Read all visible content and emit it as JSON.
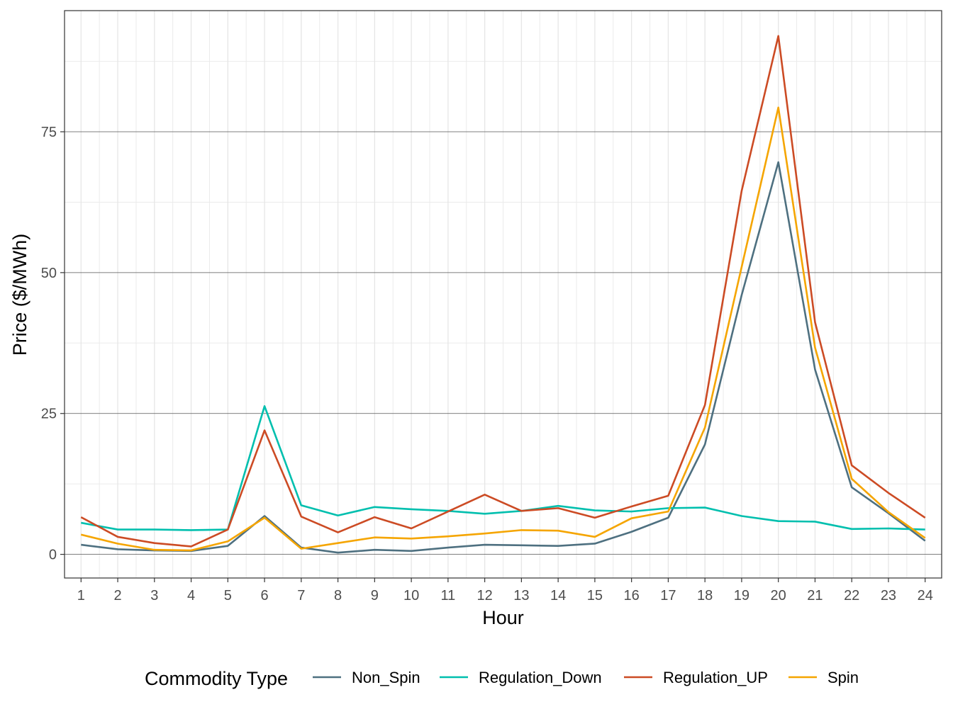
{
  "chart_data": {
    "type": "line",
    "title": "",
    "xlabel": "Hour",
    "ylabel": "Price ($/MWh)",
    "x": [
      1,
      2,
      3,
      4,
      5,
      6,
      7,
      8,
      9,
      10,
      11,
      12,
      13,
      14,
      15,
      16,
      17,
      18,
      19,
      20,
      21,
      22,
      23,
      24
    ],
    "x_tick_labels": [
      "1",
      "2",
      "3",
      "4",
      "5",
      "6",
      "7",
      "8",
      "9",
      "10",
      "11",
      "12",
      "13",
      "14",
      "15",
      "16",
      "17",
      "18",
      "19",
      "20",
      "21",
      "22",
      "23",
      "24"
    ],
    "xlim": [
      0.55,
      24.45
    ],
    "ylim": [
      -4.2,
      96.5
    ],
    "y_ticks": [
      0,
      25,
      50,
      75
    ],
    "y_tick_labels": [
      "0",
      "25",
      "50",
      "75"
    ],
    "grid": true,
    "legend": {
      "title": "Commodity Type",
      "position": "bottom"
    },
    "series": [
      {
        "name": "Non_Spin",
        "color": "#4e7080",
        "values": [
          1.7,
          0.9,
          0.7,
          0.6,
          1.5,
          6.8,
          1.2,
          0.3,
          0.8,
          0.6,
          1.2,
          1.7,
          1.6,
          1.5,
          1.9,
          4.0,
          6.5,
          19.5,
          46.0,
          69.6,
          32.8,
          11.9,
          7.3,
          2.4
        ]
      },
      {
        "name": "Regulation_Down",
        "color": "#00bfae",
        "values": [
          5.6,
          4.4,
          4.4,
          4.3,
          4.4,
          26.3,
          8.7,
          6.9,
          8.4,
          8.0,
          7.7,
          7.2,
          7.7,
          8.6,
          7.8,
          7.6,
          8.2,
          8.3,
          6.8,
          5.9,
          5.8,
          4.5,
          4.6,
          4.4
        ]
      },
      {
        "name": "Regulation_UP",
        "color": "#cc4b24",
        "values": [
          6.6,
          3.1,
          2.0,
          1.4,
          4.4,
          22.0,
          6.7,
          3.9,
          6.6,
          4.6,
          7.6,
          10.6,
          7.7,
          8.2,
          6.5,
          8.5,
          10.4,
          26.5,
          64.5,
          92.0,
          41.2,
          15.8,
          10.9,
          6.5
        ]
      },
      {
        "name": "Spin",
        "color": "#f5a500",
        "values": [
          3.5,
          1.9,
          0.8,
          0.7,
          2.3,
          6.5,
          1.0,
          2.0,
          3.0,
          2.8,
          3.2,
          3.7,
          4.3,
          4.2,
          3.1,
          6.4,
          7.6,
          22.5,
          51.0,
          79.3,
          36.7,
          13.4,
          7.5,
          2.9
        ]
      }
    ]
  }
}
